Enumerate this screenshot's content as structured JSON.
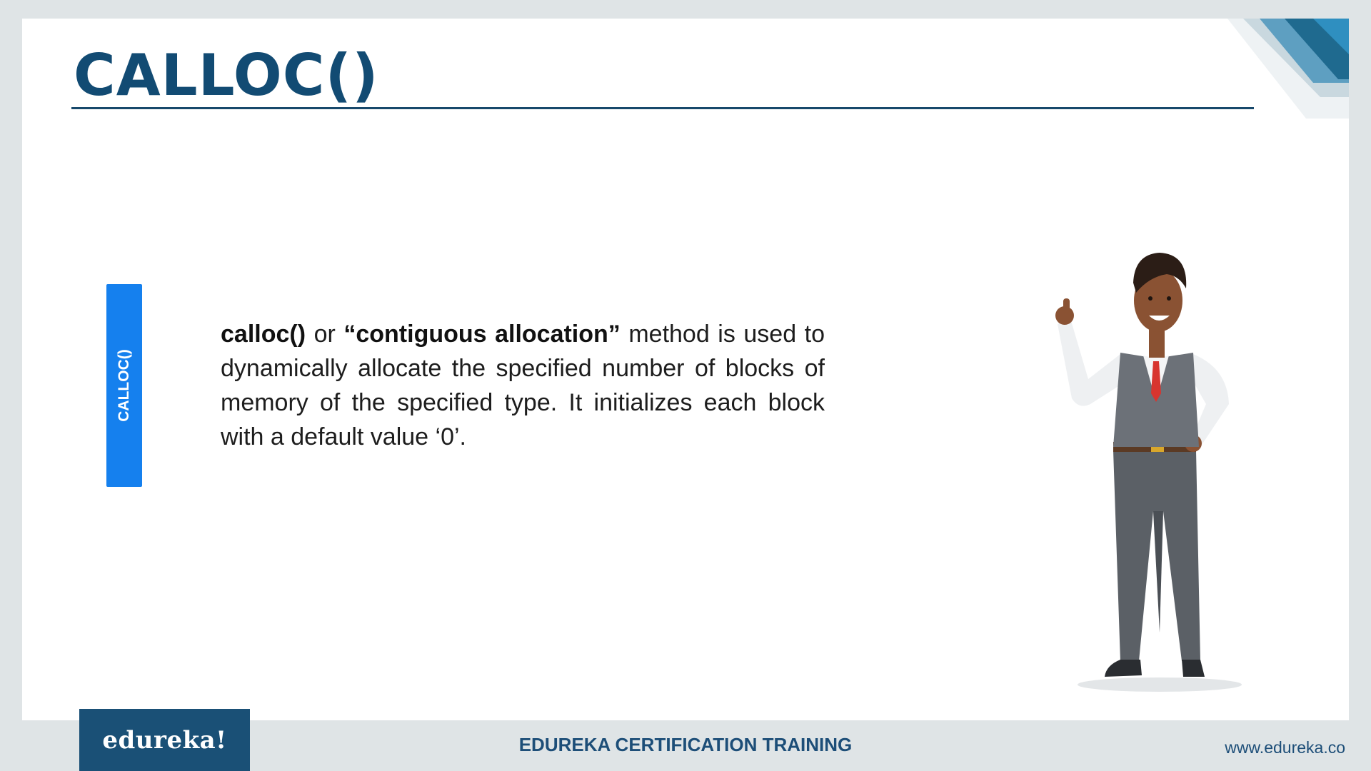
{
  "slide": {
    "title": "CALLOC()",
    "side_tab_label": "CALLOC()",
    "body": {
      "term": "calloc()",
      "connector": " or ",
      "quoted_term": "“contiguous allocation”",
      "rest": " method is used to dynamically allocate the specified number of blocks of memory of the specified type. It initializes each block with a default value ‘0’."
    }
  },
  "footer": {
    "logo": "edureka!",
    "center_text": "EDUREKA CERTIFICATION TRAINING",
    "url": "www.edureka.co"
  },
  "colors": {
    "title": "#124b73",
    "accent_tab": "#1580ee",
    "footer_bar": "#1a5076",
    "footer_text": "#1d4e78"
  },
  "icons": [
    "presenter-illustration",
    "corner-stripes-decoration"
  ]
}
